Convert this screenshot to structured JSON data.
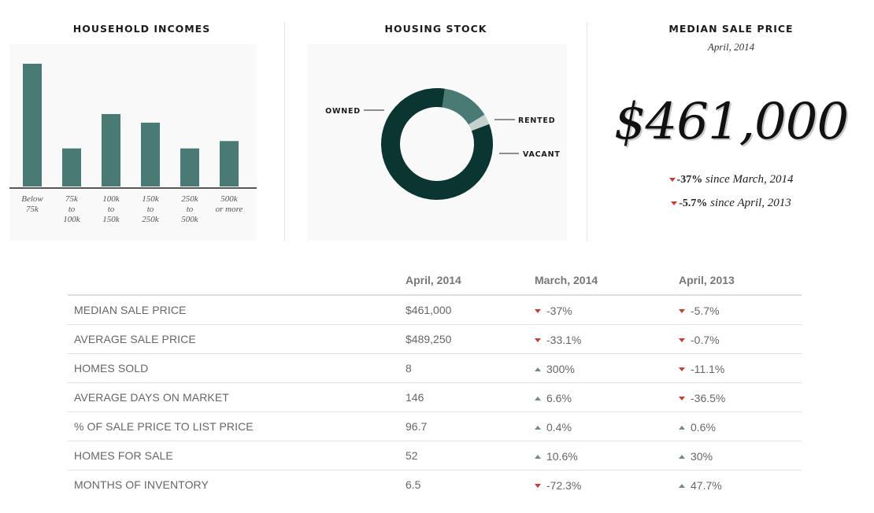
{
  "panels": {
    "incomes_title": "HOUSEHOLD INCOMES",
    "housing_title": "HOUSING STOCK",
    "price_title": "MEDIAN SALE PRICE",
    "price_date": "April, 2014",
    "price_value": "$461,000",
    "changes": [
      {
        "value": "-37%",
        "text": " since March, 2014",
        "direction": "down"
      },
      {
        "value": "-5.7%",
        "text": " since April, 2013",
        "direction": "down"
      }
    ]
  },
  "colors": {
    "bar": "#4a7a74",
    "owned": "#0b3530",
    "rented": "#4a7a74",
    "vacant": "#c5d1cd",
    "down": "#c0403a",
    "up": "#6f8d88"
  },
  "chart_data": [
    {
      "type": "bar",
      "categories": [
        [
          "Below",
          "75k"
        ],
        [
          "75k",
          "to",
          "100k"
        ],
        [
          "100k",
          "to",
          "150k"
        ],
        [
          "150k",
          "to",
          "250k"
        ],
        [
          "250k",
          "to",
          "500k"
        ],
        [
          "500k",
          "or more"
        ]
      ],
      "values": [
        100,
        31,
        59,
        52,
        31,
        37
      ],
      "ylim": [
        0,
        100
      ]
    },
    {
      "type": "pie",
      "labels": [
        "OWNED",
        "RENTED",
        "VACANT"
      ],
      "values": [
        83,
        14,
        3
      ]
    }
  ],
  "table": {
    "headers": [
      "",
      "April, 2014",
      "March, 2014",
      "April, 2013"
    ],
    "rows": [
      {
        "metric": "MEDIAN SALE PRICE",
        "apr2014": "$461,000",
        "mar2014": {
          "v": "-37%",
          "dir": "down"
        },
        "apr2013": {
          "v": "-5.7%",
          "dir": "down"
        }
      },
      {
        "metric": "AVERAGE SALE PRICE",
        "apr2014": "$489,250",
        "mar2014": {
          "v": "-33.1%",
          "dir": "down"
        },
        "apr2013": {
          "v": "-0.7%",
          "dir": "down"
        }
      },
      {
        "metric": "HOMES SOLD",
        "apr2014": "8",
        "mar2014": {
          "v": "300%",
          "dir": "up"
        },
        "apr2013": {
          "v": "-11.1%",
          "dir": "down"
        }
      },
      {
        "metric": "AVERAGE DAYS ON MARKET",
        "apr2014": "146",
        "mar2014": {
          "v": "6.6%",
          "dir": "up"
        },
        "apr2013": {
          "v": "-36.5%",
          "dir": "down"
        }
      },
      {
        "metric": "% OF SALE PRICE TO LIST PRICE",
        "apr2014": "96.7",
        "mar2014": {
          "v": "0.4%",
          "dir": "up"
        },
        "apr2013": {
          "v": "0.6%",
          "dir": "up"
        }
      },
      {
        "metric": "HOMES FOR SALE",
        "apr2014": "52",
        "mar2014": {
          "v": "10.6%",
          "dir": "up"
        },
        "apr2013": {
          "v": "30%",
          "dir": "up"
        }
      },
      {
        "metric": "MONTHS OF INVENTORY",
        "apr2014": "6.5",
        "mar2014": {
          "v": "-72.3%",
          "dir": "down"
        },
        "apr2013": {
          "v": "47.7%",
          "dir": "up"
        }
      }
    ]
  }
}
